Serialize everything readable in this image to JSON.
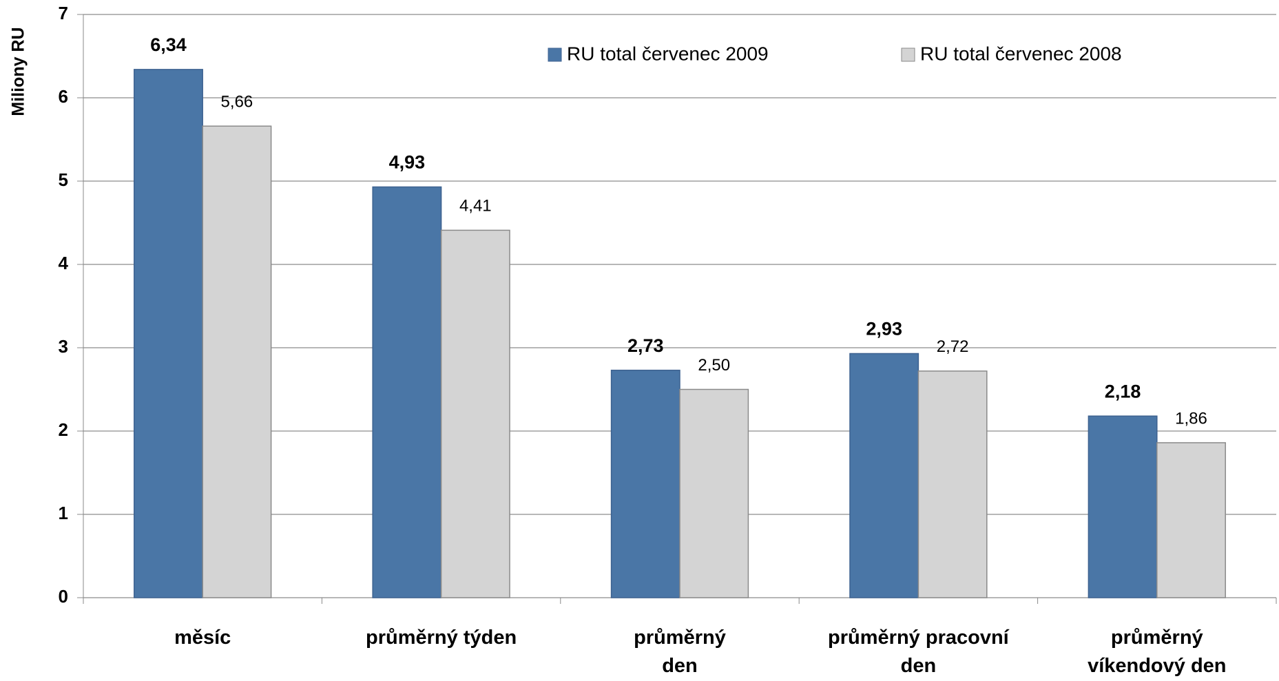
{
  "chart_data": {
    "type": "bar",
    "y_label": "Miliony RU",
    "categories": [
      "měsíc",
      "průměrný týden",
      "průměrný\nden",
      "průměrný pracovní\nden",
      "průměrný\nvíkendový den"
    ],
    "series": [
      {
        "name": "RU total červenec 2009",
        "color": "#4a76a6",
        "values": [
          6.34,
          4.93,
          2.73,
          2.93,
          2.18
        ],
        "value_labels": [
          "6,34",
          "4,93",
          "2,73",
          "2,93",
          "2,18"
        ]
      },
      {
        "name": "RU total červenec 2008",
        "color": "#d4d4d4",
        "values": [
          5.66,
          4.41,
          2.5,
          2.72,
          1.86
        ],
        "value_labels": [
          "5,66",
          "4,41",
          "2,50",
          "2,72",
          "1,86"
        ]
      }
    ],
    "ylim": [
      0,
      7
    ],
    "yticks": [
      0,
      1,
      2,
      3,
      4,
      5,
      6,
      7
    ],
    "grid": true,
    "legend": "top"
  }
}
